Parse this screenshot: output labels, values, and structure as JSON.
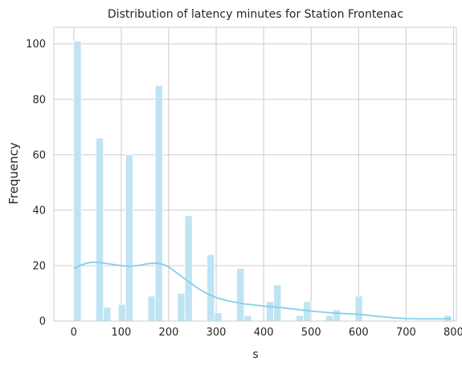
{
  "chart_data": {
    "type": "bar",
    "title": "Distribution of latency minutes for Station Frontenac",
    "xlabel": "s",
    "ylabel": "Frequency",
    "xlim": [
      -42,
      806
    ],
    "ylim": [
      0,
      106
    ],
    "x_ticks": [
      0,
      100,
      200,
      300,
      400,
      500,
      600,
      700,
      800
    ],
    "y_ticks": [
      0,
      20,
      40,
      60,
      80,
      100
    ],
    "grid": true,
    "bin_width": 15.6,
    "bins": [
      {
        "x0": 0,
        "x1": 15.6,
        "count": 101
      },
      {
        "x0": 46.8,
        "x1": 62.4,
        "count": 66
      },
      {
        "x0": 62.4,
        "x1": 78.0,
        "count": 5
      },
      {
        "x0": 93.6,
        "x1": 109.2,
        "count": 6
      },
      {
        "x0": 109.2,
        "x1": 124.8,
        "count": 60
      },
      {
        "x0": 156.0,
        "x1": 171.6,
        "count": 9
      },
      {
        "x0": 171.6,
        "x1": 187.2,
        "count": 85
      },
      {
        "x0": 218.4,
        "x1": 234.0,
        "count": 10
      },
      {
        "x0": 234.0,
        "x1": 249.6,
        "count": 38
      },
      {
        "x0": 280.8,
        "x1": 296.4,
        "count": 24
      },
      {
        "x0": 296.4,
        "x1": 312.0,
        "count": 3
      },
      {
        "x0": 343.2,
        "x1": 358.8,
        "count": 19
      },
      {
        "x0": 358.8,
        "x1": 374.4,
        "count": 2
      },
      {
        "x0": 405.6,
        "x1": 421.2,
        "count": 7
      },
      {
        "x0": 421.2,
        "x1": 436.8,
        "count": 13
      },
      {
        "x0": 468.0,
        "x1": 483.6,
        "count": 2
      },
      {
        "x0": 483.6,
        "x1": 499.2,
        "count": 7
      },
      {
        "x0": 530.4,
        "x1": 546.0,
        "count": 2
      },
      {
        "x0": 546.0,
        "x1": 561.6,
        "count": 4
      },
      {
        "x0": 592.8,
        "x1": 608.4,
        "count": 9
      },
      {
        "x0": 780.0,
        "x1": 795.6,
        "count": 2
      }
    ],
    "kde": {
      "x": [
        0,
        20,
        40,
        60,
        80,
        100,
        120,
        140,
        160,
        180,
        200,
        220,
        240,
        260,
        280,
        300,
        320,
        340,
        360,
        380,
        400,
        420,
        440,
        460,
        480,
        500,
        520,
        540,
        560,
        580,
        600,
        620,
        640,
        660,
        680,
        700,
        720,
        740,
        760,
        780,
        795
      ],
      "y": [
        19,
        20.5,
        21.2,
        21,
        20.5,
        20,
        19.8,
        20.2,
        20.8,
        20.8,
        19.5,
        17,
        14.5,
        12,
        10,
        8.5,
        7.5,
        6.8,
        6.2,
        5.8,
        5.4,
        5.1,
        4.8,
        4.4,
        4.0,
        3.6,
        3.3,
        3.0,
        2.8,
        2.6,
        2.4,
        2.1,
        1.7,
        1.4,
        1.1,
        0.9,
        0.8,
        0.8,
        0.8,
        0.8,
        0.9
      ]
    },
    "colors": {
      "bar_fill": "#bfe4f3",
      "bar_stroke": "#ffffff",
      "kde_line": "#87ceeb",
      "grid": "#cccccc",
      "axes_border": "#cccccc",
      "text": "#262626"
    }
  }
}
